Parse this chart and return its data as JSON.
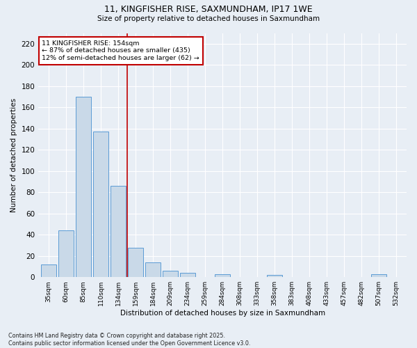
{
  "title1": "11, KINGFISHER RISE, SAXMUNDHAM, IP17 1WE",
  "title2": "Size of property relative to detached houses in Saxmundham",
  "xlabel": "Distribution of detached houses by size in Saxmundham",
  "ylabel": "Number of detached properties",
  "categories": [
    "35sqm",
    "60sqm",
    "85sqm",
    "110sqm",
    "134sqm",
    "159sqm",
    "184sqm",
    "209sqm",
    "234sqm",
    "259sqm",
    "284sqm",
    "308sqm",
    "333sqm",
    "358sqm",
    "383sqm",
    "408sqm",
    "433sqm",
    "457sqm",
    "482sqm",
    "507sqm",
    "532sqm"
  ],
  "values": [
    12,
    44,
    170,
    137,
    86,
    28,
    14,
    6,
    4,
    0,
    3,
    0,
    0,
    2,
    0,
    0,
    0,
    0,
    0,
    3,
    0
  ],
  "bar_color": "#c9d9e8",
  "bar_edge_color": "#5b9bd5",
  "vline_x_index": 5,
  "vline_color": "#c00000",
  "annotation_text": "11 KINGFISHER RISE: 154sqm\n← 87% of detached houses are smaller (435)\n12% of semi-detached houses are larger (62) →",
  "annotation_box_color": "#ffffff",
  "annotation_box_edge": "#c00000",
  "ylim": [
    0,
    230
  ],
  "yticks": [
    0,
    20,
    40,
    60,
    80,
    100,
    120,
    140,
    160,
    180,
    200,
    220
  ],
  "bg_color": "#e8eef5",
  "grid_color": "#ffffff",
  "footer": "Contains HM Land Registry data © Crown copyright and database right 2025.\nContains public sector information licensed under the Open Government Licence v3.0."
}
